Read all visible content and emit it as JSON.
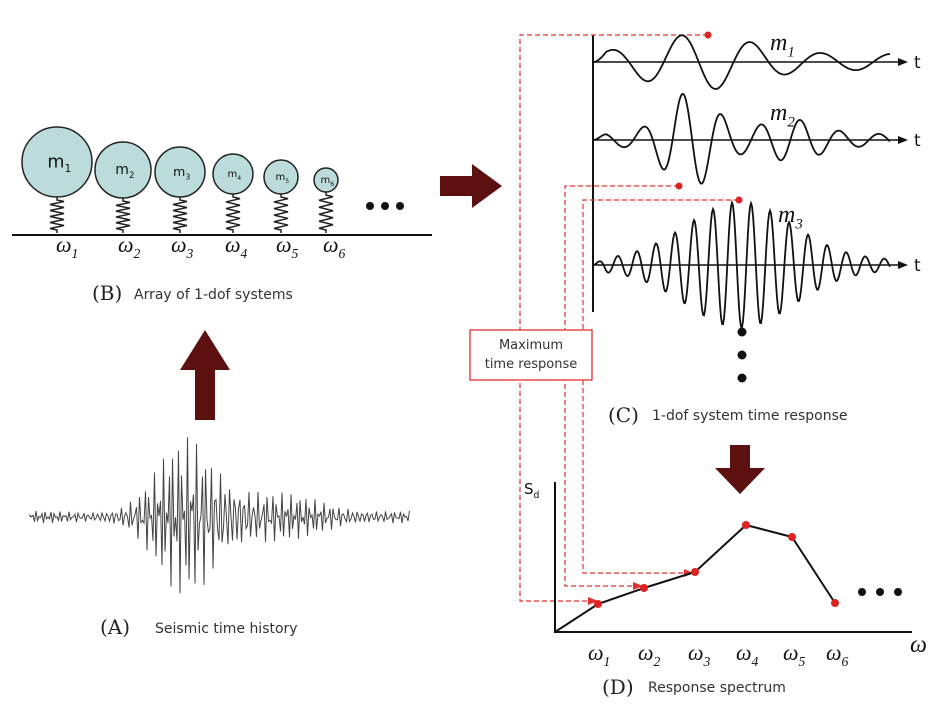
{
  "panel_b": {
    "letter": "(B)",
    "caption": "Array of 1-dof systems",
    "masses": [
      {
        "symbol": "m",
        "sub": "1"
      },
      {
        "symbol": "m",
        "sub": "2"
      },
      {
        "symbol": "m",
        "sub": "3"
      },
      {
        "symbol": "m",
        "sub": "4"
      },
      {
        "symbol": "m",
        "sub": "5"
      },
      {
        "symbol": "m",
        "sub": "6"
      }
    ],
    "frequencies": [
      {
        "symbol": "ω",
        "sub": "1"
      },
      {
        "symbol": "ω",
        "sub": "2"
      },
      {
        "symbol": "ω",
        "sub": "3"
      },
      {
        "symbol": "ω",
        "sub": "4"
      },
      {
        "symbol": "ω",
        "sub": "5"
      },
      {
        "symbol": "ω",
        "sub": "6"
      }
    ]
  },
  "panel_a": {
    "letter": "(A)",
    "caption": "Seismic time history"
  },
  "panel_c": {
    "letter": "(C)",
    "caption": "1-dof system time response",
    "responses": [
      {
        "symbol": "m",
        "sub": "1",
        "axis": "t"
      },
      {
        "symbol": "m",
        "sub": "2",
        "axis": "t"
      },
      {
        "symbol": "m",
        "sub": "3",
        "axis": "t"
      }
    ]
  },
  "callout": {
    "lines": [
      "Maximum",
      "time response"
    ]
  },
  "panel_d": {
    "letter": "(D)",
    "caption": "Response spectrum",
    "y_axis": {
      "symbol": "S",
      "sub": "d"
    },
    "x_axis": "ω",
    "frequencies": [
      {
        "symbol": "ω",
        "sub": "1"
      },
      {
        "symbol": "ω",
        "sub": "2"
      },
      {
        "symbol": "ω",
        "sub": "3"
      },
      {
        "symbol": "ω",
        "sub": "4"
      },
      {
        "symbol": "ω",
        "sub": "5"
      },
      {
        "symbol": "ω",
        "sub": "6"
      }
    ]
  }
}
